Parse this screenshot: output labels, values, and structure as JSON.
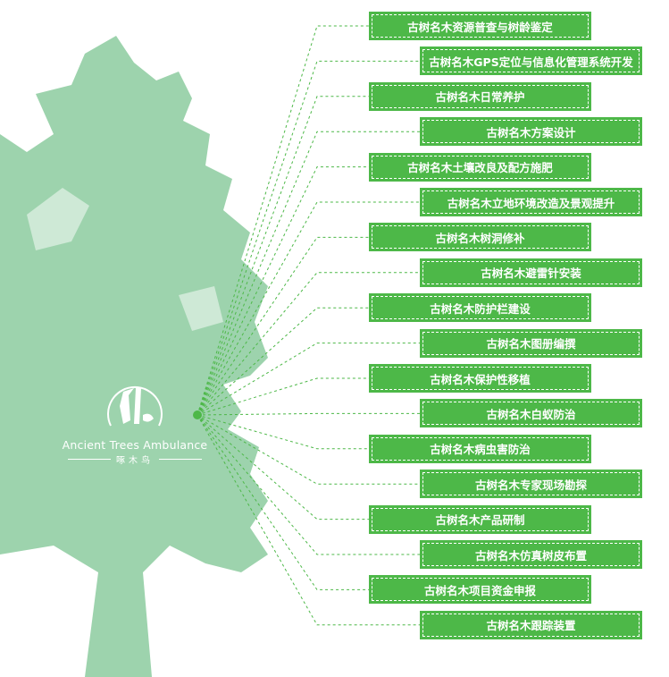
{
  "colors": {
    "tree": "#9dd3ad",
    "box": "#4db848",
    "line": "#4db848"
  },
  "logo": {
    "english": "Ancient Trees Ambulance",
    "chinese": "啄木鸟",
    "icon": "woodpecker-icon"
  },
  "services": [
    "古树名木资源普查与树龄鉴定",
    "古树名木GPS定位与信息化管理系统开发",
    "古树名木日常养护",
    "古树名木方案设计",
    "古树名木土壤改良及配方施肥",
    "古树名木立地环境改造及景观提升",
    "古树名木树洞修补",
    "古树名木避雷针安装",
    "古树名木防护栏建设",
    "古树名木图册编撰",
    "古树名木保护性移植",
    "古树名木白蚁防治",
    "古树名木病虫害防治",
    "古树名木专家现场勘探",
    "古树名木产品研制",
    "古树名木仿真树皮布置",
    "古树名木项目资金申报",
    "古树名木跟踪装置"
  ]
}
